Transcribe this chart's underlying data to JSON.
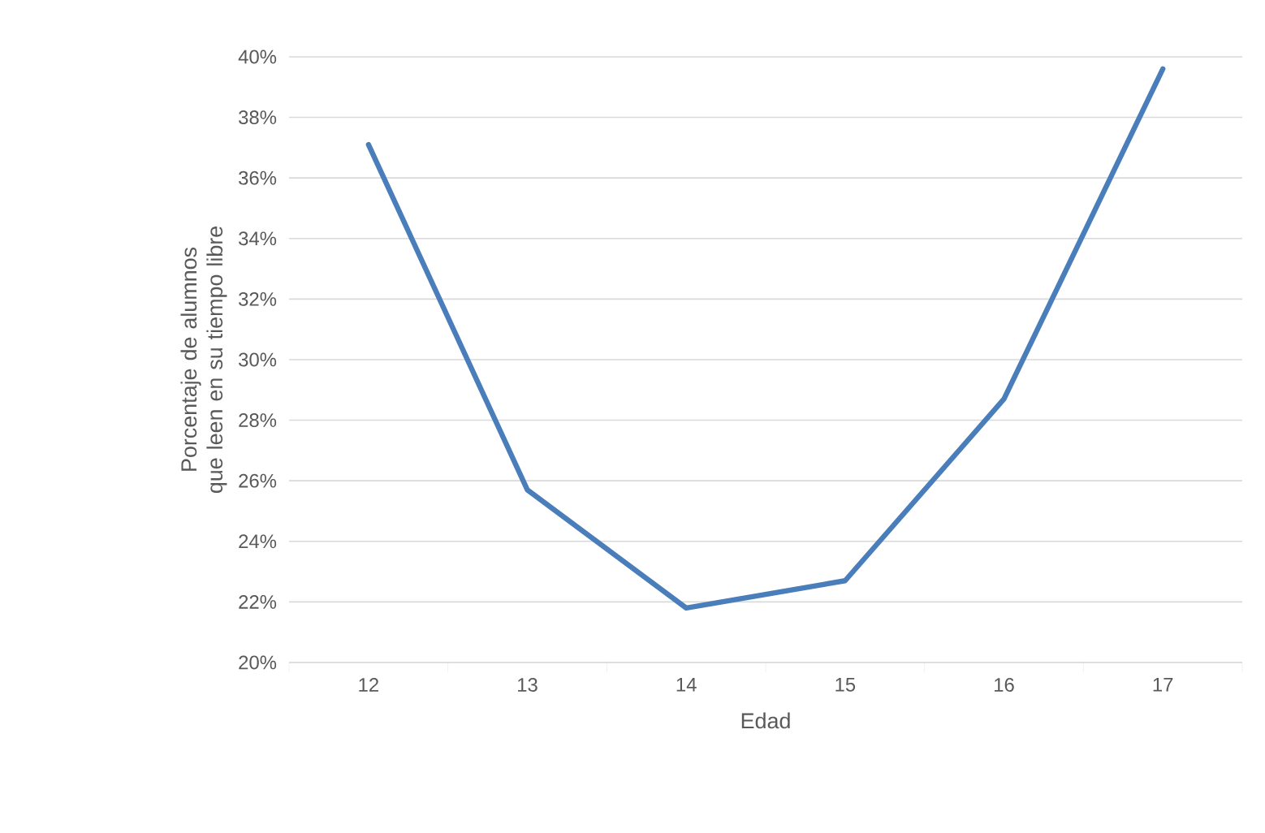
{
  "chart_data": {
    "type": "line",
    "xlabel": "Edad",
    "ylabel": "Porcentaje de alumnos que leen en su tiempo libre",
    "categories": [
      "12",
      "13",
      "14",
      "15",
      "16",
      "17"
    ],
    "series": [
      {
        "color": "#4a7ebb",
        "values": [
          37.1,
          25.7,
          21.8,
          22.7,
          28.7,
          39.6
        ]
      }
    ],
    "ylim": [
      20,
      40
    ],
    "yticks": [
      {
        "value": 20,
        "label": "20%"
      },
      {
        "value": 22,
        "label": "22%"
      },
      {
        "value": 24,
        "label": "24%"
      },
      {
        "value": 26,
        "label": "26%"
      },
      {
        "value": 28,
        "label": "28%"
      },
      {
        "value": 30,
        "label": "30%"
      },
      {
        "value": 32,
        "label": "32%"
      },
      {
        "value": 34,
        "label": "34%"
      },
      {
        "value": 36,
        "label": "36%"
      },
      {
        "value": 38,
        "label": "38%"
      },
      {
        "value": 40,
        "label": "40%"
      }
    ],
    "grid": "y",
    "marker": "none",
    "line_style": "solid"
  }
}
